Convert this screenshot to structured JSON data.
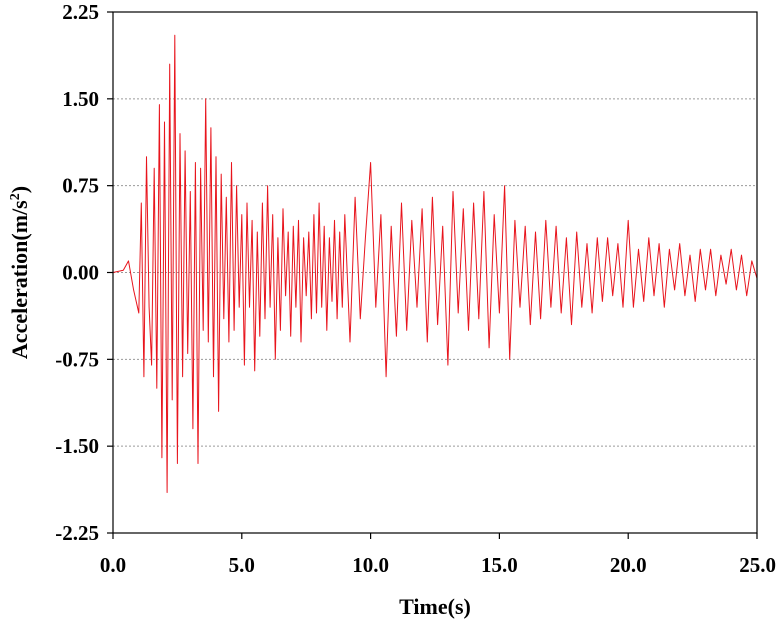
{
  "chart_data": {
    "type": "line",
    "title": "",
    "xlabel": "Time(s)",
    "ylabel": "Acceleration(m/s",
    "ylabel_superscript": "2",
    "ylabel_suffix": ")",
    "xlim": [
      0,
      25
    ],
    "ylim": [
      -2.25,
      2.25
    ],
    "x_ticks": [
      0,
      5,
      10,
      15,
      20,
      25
    ],
    "x_tick_labels": [
      "0.0",
      "5.0",
      "10.0",
      "15.0",
      "20.0",
      "25.0"
    ],
    "y_ticks": [
      -2.25,
      -1.5,
      -0.75,
      0,
      0.75,
      1.5,
      2.25
    ],
    "y_tick_labels": [
      "-2.25",
      "-1.50",
      "-0.75",
      "0.00",
      "0.75",
      "1.50",
      "2.25"
    ],
    "y_grid": [
      -1.5,
      -0.75,
      0,
      0.75,
      1.5
    ],
    "grid": "horizontal dotted",
    "legend": "none",
    "series": [
      {
        "color": "#e8141c",
        "x": [
          0,
          0.4,
          0.6,
          0.8,
          1.0,
          1.1,
          1.2,
          1.3,
          1.4,
          1.5,
          1.6,
          1.7,
          1.8,
          1.9,
          2.0,
          2.1,
          2.2,
          2.3,
          2.4,
          2.5,
          2.6,
          2.7,
          2.8,
          2.9,
          3.0,
          3.1,
          3.2,
          3.3,
          3.4,
          3.5,
          3.6,
          3.7,
          3.8,
          3.9,
          4.0,
          4.1,
          4.2,
          4.3,
          4.4,
          4.5,
          4.6,
          4.7,
          4.8,
          4.9,
          5.0,
          5.1,
          5.2,
          5.3,
          5.4,
          5.5,
          5.6,
          5.7,
          5.8,
          5.9,
          6.0,
          6.1,
          6.2,
          6.3,
          6.4,
          6.5,
          6.6,
          6.7,
          6.8,
          6.9,
          7.0,
          7.1,
          7.2,
          7.3,
          7.4,
          7.5,
          7.6,
          7.7,
          7.8,
          7.9,
          8.0,
          8.1,
          8.2,
          8.3,
          8.4,
          8.5,
          8.6,
          8.7,
          8.8,
          8.9,
          9.0,
          9.2,
          9.4,
          9.6,
          9.8,
          10.0,
          10.2,
          10.4,
          10.6,
          10.8,
          11.0,
          11.2,
          11.4,
          11.6,
          11.8,
          12.0,
          12.2,
          12.4,
          12.6,
          12.8,
          13.0,
          13.2,
          13.4,
          13.6,
          13.8,
          14.0,
          14.2,
          14.4,
          14.6,
          14.8,
          15.0,
          15.2,
          15.4,
          15.6,
          15.8,
          16.0,
          16.2,
          16.4,
          16.6,
          16.8,
          17.0,
          17.2,
          17.4,
          17.6,
          17.8,
          18.0,
          18.2,
          18.4,
          18.6,
          18.8,
          19.0,
          19.2,
          19.4,
          19.6,
          19.8,
          20.0,
          20.2,
          20.4,
          20.6,
          20.8,
          21.0,
          21.2,
          21.4,
          21.6,
          21.8,
          22.0,
          22.2,
          22.4,
          22.6,
          22.8,
          23.0,
          23.2,
          23.4,
          23.6,
          23.8,
          24.0,
          24.2,
          24.4,
          24.6,
          24.8,
          25.0
        ],
        "y": [
          0.0,
          0.02,
          0.1,
          -0.15,
          -0.35,
          0.6,
          -0.9,
          1.0,
          -0.3,
          -0.8,
          0.9,
          -1.0,
          1.45,
          -1.6,
          1.3,
          -1.9,
          1.8,
          -1.1,
          2.05,
          -1.65,
          1.2,
          -0.9,
          1.05,
          -0.7,
          0.7,
          -1.35,
          0.95,
          -1.65,
          0.9,
          -0.5,
          1.5,
          -0.6,
          1.25,
          -0.9,
          1.0,
          -1.2,
          0.85,
          -0.4,
          0.65,
          -0.6,
          0.95,
          -0.5,
          0.75,
          -0.3,
          0.5,
          -0.8,
          0.6,
          -0.3,
          0.45,
          -0.85,
          0.35,
          -0.55,
          0.6,
          -0.4,
          0.75,
          -0.3,
          0.5,
          -0.75,
          0.3,
          -0.5,
          0.55,
          -0.2,
          0.35,
          -0.55,
          0.4,
          -0.3,
          0.45,
          -0.6,
          0.3,
          -0.2,
          0.35,
          -0.4,
          0.5,
          -0.35,
          0.6,
          -0.3,
          0.4,
          -0.5,
          0.3,
          -0.25,
          0.45,
          -0.4,
          0.35,
          -0.3,
          0.5,
          -0.6,
          0.65,
          -0.4,
          0.3,
          0.95,
          -0.3,
          0.5,
          -0.9,
          0.4,
          -0.55,
          0.6,
          -0.5,
          0.45,
          -0.3,
          0.55,
          -0.6,
          0.65,
          -0.45,
          0.4,
          -0.8,
          0.7,
          -0.35,
          0.55,
          -0.5,
          0.6,
          -0.4,
          0.7,
          -0.65,
          0.5,
          -0.35,
          0.75,
          -0.75,
          0.45,
          -0.3,
          0.4,
          -0.45,
          0.35,
          -0.4,
          0.45,
          -0.3,
          0.4,
          -0.35,
          0.3,
          -0.45,
          0.35,
          -0.3,
          0.25,
          -0.35,
          0.3,
          -0.25,
          0.3,
          -0.2,
          0.25,
          -0.3,
          0.45,
          -0.3,
          0.2,
          -0.25,
          0.3,
          -0.2,
          0.25,
          -0.3,
          0.2,
          -0.15,
          0.25,
          -0.2,
          0.15,
          -0.25,
          0.2,
          -0.15,
          0.2,
          -0.2,
          0.15,
          -0.1,
          0.2,
          -0.15,
          0.15,
          -0.2,
          0.1,
          -0.05
        ]
      }
    ]
  }
}
